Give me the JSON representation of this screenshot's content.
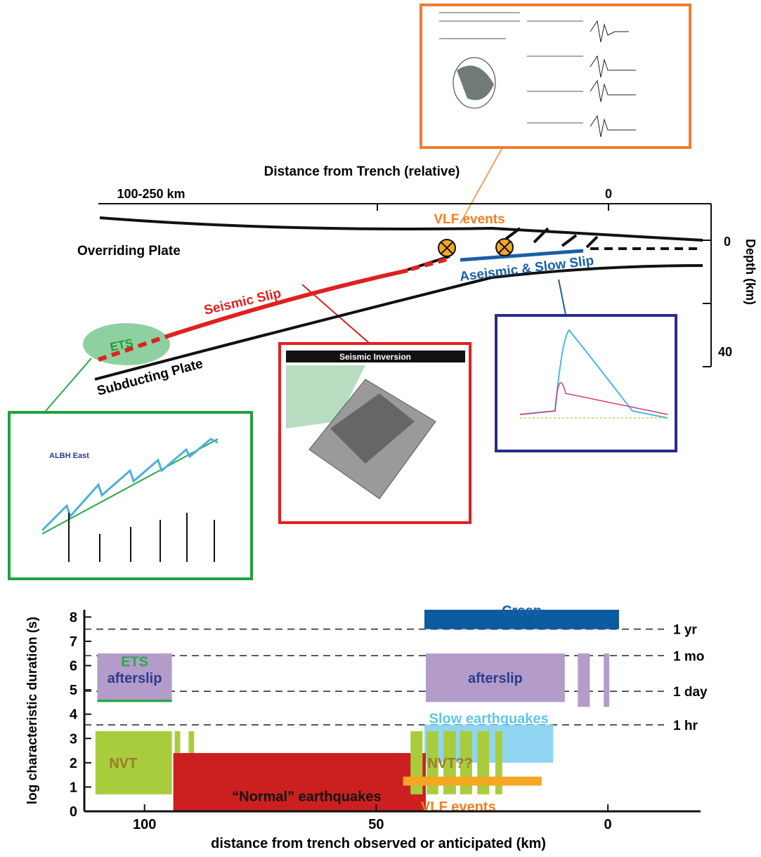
{
  "schematic": {
    "x_axis_title": "Distance from Trench (relative)",
    "x_labels": [
      "100-250 km",
      "0"
    ],
    "depth_title": "Depth (km)",
    "depth_labels": [
      "0",
      "40"
    ],
    "overriding": "Overriding Plate",
    "subducting": "Subducting Plate",
    "seismic": "Seismic Slip",
    "aseismic": "Aseismic & Slow Slip",
    "vlf": "VLF events",
    "ets": "ETS",
    "inset_gps": "ALBH East",
    "inset_inversion": "Seismic Inversion"
  },
  "chart_data": {
    "type": "range",
    "xlabel": "distance from trench observed or anticipated (km)",
    "ylabel": "log characteristic duration (s)",
    "xlim": [
      113,
      -20
    ],
    "ylim": [
      0,
      8.3
    ],
    "xticks": [
      100,
      50,
      0
    ],
    "yticks": [
      0,
      1,
      2,
      3,
      4,
      5,
      6,
      7,
      8
    ],
    "reference_lines": [
      {
        "value": 7.5,
        "label": "1 yr"
      },
      {
        "value": 6.41,
        "label": "1 mo"
      },
      {
        "value": 4.94,
        "label": "1 day"
      },
      {
        "value": 3.56,
        "label": "1 hr"
      }
    ],
    "ranges": [
      {
        "label": "Creep",
        "color": "#0b5c9e",
        "x": [
          39.6,
          -2.4
        ],
        "y": [
          7.5,
          8.3
        ]
      },
      {
        "label": "afterslip",
        "color": "#b39cc9",
        "x": [
          110.2,
          94.1
        ],
        "y": [
          4.5,
          6.5
        ]
      },
      {
        "label": "ETS",
        "color": "#2aa84a",
        "x": [
          110.2,
          94.1
        ],
        "y": [
          4.5,
          4.6
        ]
      },
      {
        "label": "afterslip",
        "color": "#b39cc9",
        "x": [
          39.3,
          9.3
        ],
        "y": [
          4.5,
          6.5
        ]
      },
      {
        "color": "#b39cc9",
        "x": [
          6.5,
          3.9
        ],
        "y": [
          4.3,
          6.5
        ]
      },
      {
        "color": "#b39cc9",
        "x": [
          0.9,
          -0.3
        ],
        "y": [
          4.3,
          6.5
        ]
      },
      {
        "label": "Slow earthquakes",
        "color": "#8fd5f2",
        "x": [
          39.6,
          11.8
        ],
        "y": [
          2.0,
          3.57
        ]
      },
      {
        "label": "NVT",
        "color": "#a9cc3c",
        "x": [
          110.6,
          94.1
        ],
        "y": [
          0.7,
          3.3
        ]
      },
      {
        "color": "#a9cc3c",
        "x": [
          93.5,
          92.3
        ],
        "y": [
          0.7,
          3.3
        ]
      },
      {
        "color": "#a9cc3c",
        "x": [
          90.5,
          89.3
        ],
        "y": [
          0.7,
          3.3
        ]
      },
      {
        "label": "“Normal” earthquakes",
        "color": "#cc2020",
        "x": [
          93.8,
          39.3
        ],
        "y": [
          0,
          2.4
        ]
      },
      {
        "color": "#a9cc3c",
        "x": [
          42.6,
          40.0
        ],
        "y": [
          0.7,
          3.3
        ]
      },
      {
        "label": "NVT??",
        "color": "#a9cc3c",
        "x": [
          39.1,
          36.6
        ],
        "y": [
          0.7,
          3.3
        ]
      },
      {
        "color": "#a9cc3c",
        "x": [
          35.5,
          32.8
        ],
        "y": [
          0.7,
          3.3
        ]
      },
      {
        "color": "#a9cc3c",
        "x": [
          31.9,
          29.3
        ],
        "y": [
          0.7,
          3.3
        ]
      },
      {
        "color": "#a9cc3c",
        "x": [
          28.2,
          25.6
        ],
        "y": [
          0.7,
          3.3
        ]
      },
      {
        "color": "#a9cc3c",
        "x": [
          24.3,
          22.8
        ],
        "y": [
          0.7,
          3.3
        ]
      },
      {
        "label": "VLF events",
        "color": "#f5a623",
        "x": [
          44.2,
          14.3
        ],
        "y": [
          1.06,
          1.43
        ]
      }
    ]
  }
}
